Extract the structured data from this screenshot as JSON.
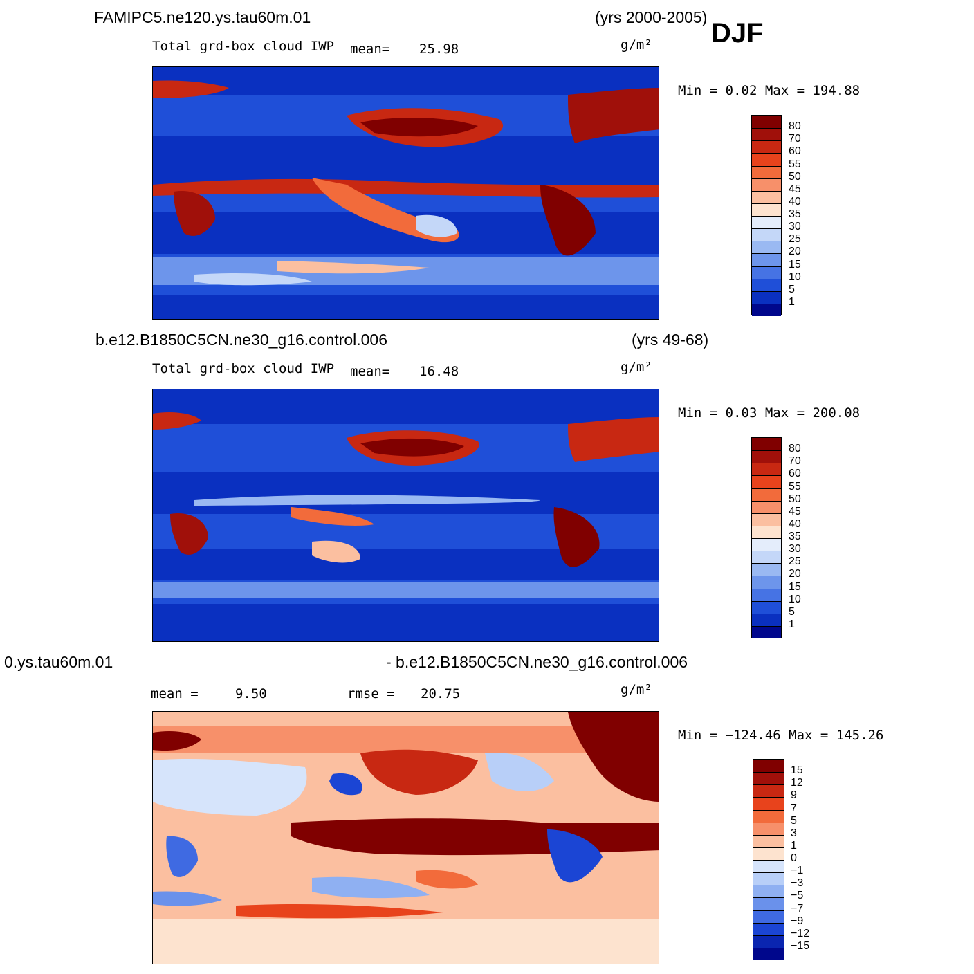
{
  "season": "DJF",
  "panels": [
    {
      "case": "FAMIPC5.ne120.ys.tau60m.01",
      "years": "(yrs 2000-2005)",
      "variable": "Total grd-box cloud IWP",
      "stat1_label": "mean=",
      "stat1_value": "25.98",
      "units": "g/m²",
      "minmax": "Min =    0.02 Max = 194.88",
      "colorbar_labels": [
        "80",
        "70",
        "60",
        "55",
        "50",
        "45",
        "40",
        "35",
        "30",
        "25",
        "20",
        "15",
        "10",
        "5",
        "1"
      ]
    },
    {
      "case": "b.e12.B1850C5CN.ne30_g16.control.006",
      "years": "(yrs 49-68)",
      "variable": "Total grd-box cloud IWP",
      "stat1_label": "mean=",
      "stat1_value": "16.48",
      "units": "g/m²",
      "minmax": "Min =    0.03 Max = 200.08",
      "colorbar_labels": [
        "80",
        "70",
        "60",
        "55",
        "50",
        "45",
        "40",
        "35",
        "30",
        "25",
        "20",
        "15",
        "10",
        "5",
        "1"
      ]
    },
    {
      "case_left": "0.ys.tau60m.01",
      "case_right": "- b.e12.B1850C5CN.ne30_g16.control.006",
      "stat1_label": "mean =",
      "stat1_value": "9.50",
      "stat2_label": "rmse =",
      "stat2_value": "20.75",
      "units": "g/m²",
      "minmax": "Min = −124.46 Max = 145.26",
      "colorbar_labels": [
        "15",
        "12",
        "9",
        "7",
        "5",
        "3",
        "1",
        "0",
        "−1",
        "−3",
        "−5",
        "−7",
        "−9",
        "−12",
        "−15"
      ]
    }
  ],
  "colors": {
    "abs_scale": [
      "#800000",
      "#a0100a",
      "#c82812",
      "#e8431c",
      "#f26b3b",
      "#f7906a",
      "#fbbfa0",
      "#fde3cf",
      "#e4edfb",
      "#c4d7f8",
      "#9ab9f2",
      "#6d95eb",
      "#4673e4",
      "#1f4fd8",
      "#0a30c0",
      "#00078c"
    ],
    "diff_scale": [
      "#800000",
      "#a0100a",
      "#c82812",
      "#e8431c",
      "#f26b3b",
      "#f7906a",
      "#fbbfa0",
      "#fde3cf",
      "#ffffff",
      "#d6e4fb",
      "#b8cff8",
      "#8fb0f2",
      "#6a91eb",
      "#3f6ae2",
      "#1b45d4",
      "#0a25b0",
      "#00078c"
    ]
  }
}
